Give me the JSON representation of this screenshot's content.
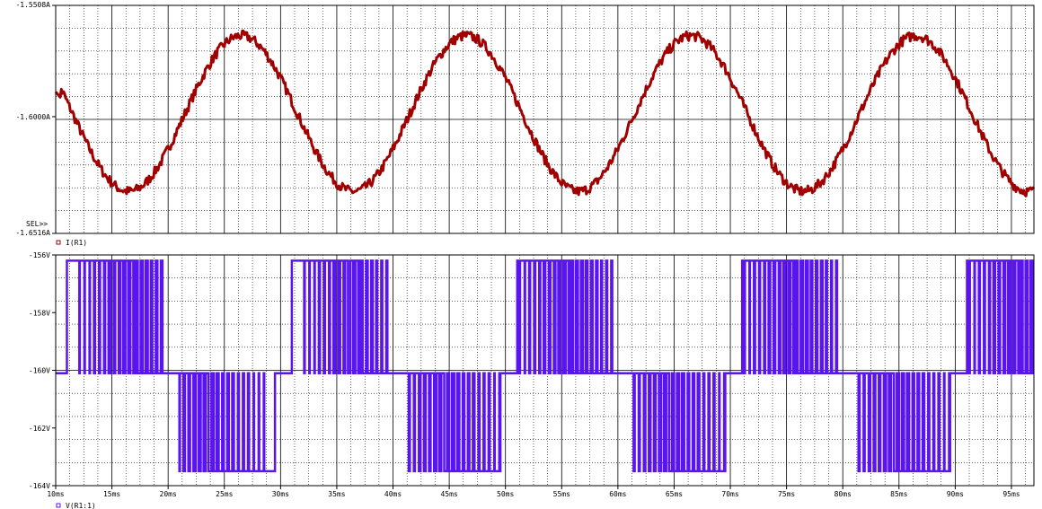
{
  "chart_data": [
    {
      "type": "line",
      "panel": "top",
      "series_color": "#a00000",
      "legend": "I(R1)",
      "marker_label": "SEL>>",
      "ylim": [
        -1.6516,
        -1.5508
      ],
      "y_ticks": [
        {
          "value": -1.5508,
          "label": "-1.5508A"
        },
        {
          "value": -1.6,
          "label": "-1.6000A"
        },
        {
          "value": -1.6516,
          "label": "-1.6516A"
        }
      ],
      "xlim_ms": [
        10,
        97
      ],
      "grid": "dotted",
      "shape": {
        "period_ms": 20,
        "peak_ms": 26.5,
        "max_A": -1.5642,
        "min_A": -1.633,
        "noise_A": 0.0022,
        "start_A": -1.589
      }
    },
    {
      "type": "line",
      "panel": "bottom",
      "series_color": "#5a14f0",
      "legend": "V(R1:1)",
      "ylim": [
        -164,
        -156
      ],
      "y_ticks": [
        {
          "value": -156,
          "label": "-156V"
        },
        {
          "value": -158,
          "label": "-158V"
        },
        {
          "value": -160,
          "label": "-160V"
        },
        {
          "value": -162,
          "label": "-162V"
        },
        {
          "value": -164,
          "label": "-164V"
        }
      ],
      "levels_V": {
        "high": -156.2,
        "mid": -160.1,
        "low": -163.5
      },
      "period_ms": 20,
      "phases_ms": [
        {
          "from": 0,
          "to": 1,
          "level": "mid"
        },
        {
          "from": 1,
          "to": 9.5,
          "level": "low",
          "pwm": "rising"
        },
        {
          "from": 9.5,
          "to": 11,
          "level": "mid"
        },
        {
          "from": 11,
          "to": 19.5,
          "level": "high",
          "pwm": "falling"
        },
        {
          "from": 19.5,
          "to": 20,
          "level": "mid"
        }
      ],
      "xlim_ms": [
        10,
        97
      ],
      "grid": "dotted"
    }
  ],
  "x_axis": {
    "ticks": [
      {
        "value": 10,
        "label": "10ms"
      },
      {
        "value": 15,
        "label": "15ms"
      },
      {
        "value": 20,
        "label": "20ms"
      },
      {
        "value": 25,
        "label": "25ms"
      },
      {
        "value": 30,
        "label": "30ms"
      },
      {
        "value": 35,
        "label": "35ms"
      },
      {
        "value": 40,
        "label": "40ms"
      },
      {
        "value": 45,
        "label": "45ms"
      },
      {
        "value": 50,
        "label": "50ms"
      },
      {
        "value": 55,
        "label": "55ms"
      },
      {
        "value": 60,
        "label": "60ms"
      },
      {
        "value": 65,
        "label": "65ms"
      },
      {
        "value": 70,
        "label": "70ms"
      },
      {
        "value": 75,
        "label": "75ms"
      },
      {
        "value": 80,
        "label": "80ms"
      },
      {
        "value": 85,
        "label": "85ms"
      },
      {
        "value": 90,
        "label": "90ms"
      },
      {
        "value": 95,
        "label": "95ms"
      }
    ]
  }
}
